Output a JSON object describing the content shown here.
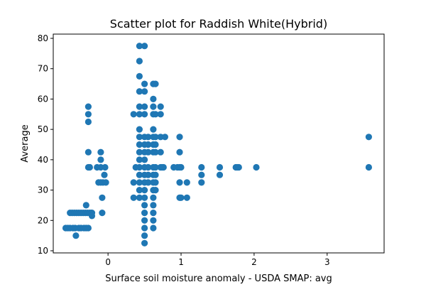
{
  "chart_data": {
    "type": "scatter",
    "title": "Scatter plot for Raddish White(Hybrid)",
    "xlabel": "Surface soil moisture anomaly  - USDA SMAP: avg",
    "ylabel": "Average",
    "xlim": [
      -0.75,
      3.78
    ],
    "ylim": [
      9.3,
      81.4
    ],
    "xticks": [
      0,
      1,
      2,
      3
    ],
    "yticks": [
      10,
      20,
      30,
      40,
      50,
      60,
      70,
      80
    ],
    "grid": false,
    "colors": {
      "marker": "#1f77b4"
    },
    "series": [
      {
        "points": [
          [
            -0.58,
            17.5
          ],
          [
            -0.55,
            17.5
          ],
          [
            -0.52,
            17.5
          ],
          [
            -0.48,
            17.5
          ],
          [
            -0.45,
            17.5
          ],
          [
            -0.4,
            17.5
          ],
          [
            -0.37,
            17.5
          ],
          [
            -0.33,
            17.5
          ],
          [
            -0.3,
            17.5
          ],
          [
            -0.27,
            17.5
          ],
          [
            -0.52,
            22.5
          ],
          [
            -0.49,
            22.5
          ],
          [
            -0.46,
            22.5
          ],
          [
            -0.43,
            22.5
          ],
          [
            -0.4,
            22.5
          ],
          [
            -0.37,
            22.5
          ],
          [
            -0.34,
            22.5
          ],
          [
            -0.31,
            22.5
          ],
          [
            -0.28,
            22.5
          ],
          [
            -0.25,
            22.5
          ],
          [
            -0.22,
            22.5
          ],
          [
            -0.44,
            15.0
          ],
          [
            -0.3,
            25.0
          ],
          [
            -0.22,
            21.5
          ],
          [
            -0.27,
            57.5
          ],
          [
            -0.27,
            55.0
          ],
          [
            -0.27,
            52.5
          ],
          [
            -0.27,
            42.5
          ],
          [
            -0.27,
            37.5
          ],
          [
            -0.25,
            37.5
          ],
          [
            -0.15,
            37.5
          ],
          [
            -0.13,
            32.5
          ],
          [
            -0.1,
            42.5
          ],
          [
            -0.1,
            40.0
          ],
          [
            -0.1,
            37.5
          ],
          [
            -0.1,
            32.5
          ],
          [
            -0.08,
            27.5
          ],
          [
            -0.08,
            22.5
          ],
          [
            -0.07,
            32.5
          ],
          [
            -0.05,
            35.0
          ],
          [
            -0.04,
            37.5
          ],
          [
            -0.03,
            32.5
          ],
          [
            0.35,
            55.0
          ],
          [
            0.35,
            32.5
          ],
          [
            0.35,
            27.5
          ],
          [
            0.38,
            37.5
          ],
          [
            0.43,
            77.5
          ],
          [
            0.43,
            72.5
          ],
          [
            0.43,
            67.5
          ],
          [
            0.43,
            62.5
          ],
          [
            0.43,
            57.5
          ],
          [
            0.43,
            55.0
          ],
          [
            0.43,
            50.0
          ],
          [
            0.43,
            47.5
          ],
          [
            0.43,
            45.0
          ],
          [
            0.43,
            42.5
          ],
          [
            0.43,
            40.0
          ],
          [
            0.43,
            37.5
          ],
          [
            0.43,
            35.0
          ],
          [
            0.43,
            32.5
          ],
          [
            0.43,
            30.0
          ],
          [
            0.43,
            27.5
          ],
          [
            0.5,
            77.5
          ],
          [
            0.5,
            65.0
          ],
          [
            0.5,
            62.5
          ],
          [
            0.5,
            57.5
          ],
          [
            0.5,
            55.0
          ],
          [
            0.5,
            47.5
          ],
          [
            0.5,
            45.0
          ],
          [
            0.5,
            42.5
          ],
          [
            0.5,
            40.0
          ],
          [
            0.5,
            37.5
          ],
          [
            0.5,
            35.0
          ],
          [
            0.5,
            32.5
          ],
          [
            0.5,
            30.0
          ],
          [
            0.5,
            27.5
          ],
          [
            0.5,
            25.0
          ],
          [
            0.5,
            22.5
          ],
          [
            0.5,
            20.0
          ],
          [
            0.5,
            17.5
          ],
          [
            0.5,
            15.0
          ],
          [
            0.5,
            12.5
          ],
          [
            0.55,
            47.5
          ],
          [
            0.55,
            45.0
          ],
          [
            0.55,
            42.5
          ],
          [
            0.55,
            37.5
          ],
          [
            0.55,
            35.0
          ],
          [
            0.55,
            32.5
          ],
          [
            0.62,
            65.0
          ],
          [
            0.62,
            60.0
          ],
          [
            0.62,
            57.5
          ],
          [
            0.62,
            55.0
          ],
          [
            0.62,
            50.0
          ],
          [
            0.62,
            47.5
          ],
          [
            0.62,
            45.0
          ],
          [
            0.62,
            42.5
          ],
          [
            0.62,
            37.5
          ],
          [
            0.62,
            35.0
          ],
          [
            0.62,
            32.5
          ],
          [
            0.62,
            30.0
          ],
          [
            0.62,
            27.5
          ],
          [
            0.62,
            25.0
          ],
          [
            0.62,
            22.5
          ],
          [
            0.62,
            20.0
          ],
          [
            0.62,
            17.5
          ],
          [
            0.65,
            65.0
          ],
          [
            0.65,
            55.0
          ],
          [
            0.65,
            47.5
          ],
          [
            0.65,
            45.0
          ],
          [
            0.65,
            42.5
          ],
          [
            0.65,
            37.5
          ],
          [
            0.65,
            35.0
          ],
          [
            0.65,
            32.5
          ],
          [
            0.65,
            30.0
          ],
          [
            0.72,
            57.5
          ],
          [
            0.72,
            55.0
          ],
          [
            0.72,
            47.5
          ],
          [
            0.72,
            42.5
          ],
          [
            0.72,
            37.5
          ],
          [
            0.74,
            37.5
          ],
          [
            0.76,
            37.5
          ],
          [
            0.78,
            47.5
          ],
          [
            0.9,
            37.5
          ],
          [
            0.95,
            37.5
          ],
          [
            0.98,
            47.5
          ],
          [
            0.98,
            42.5
          ],
          [
            0.98,
            37.5
          ],
          [
            0.98,
            32.5
          ],
          [
            0.98,
            27.5
          ],
          [
            1.0,
            27.5
          ],
          [
            1.0,
            37.5
          ],
          [
            1.08,
            32.5
          ],
          [
            1.08,
            27.5
          ],
          [
            1.28,
            37.5
          ],
          [
            1.28,
            35.0
          ],
          [
            1.28,
            32.5
          ],
          [
            1.53,
            37.5
          ],
          [
            1.53,
            35.0
          ],
          [
            1.75,
            37.5
          ],
          [
            1.77,
            37.5
          ],
          [
            1.79,
            37.5
          ],
          [
            2.03,
            37.5
          ],
          [
            3.57,
            47.5
          ],
          [
            3.57,
            37.5
          ]
        ]
      }
    ]
  }
}
